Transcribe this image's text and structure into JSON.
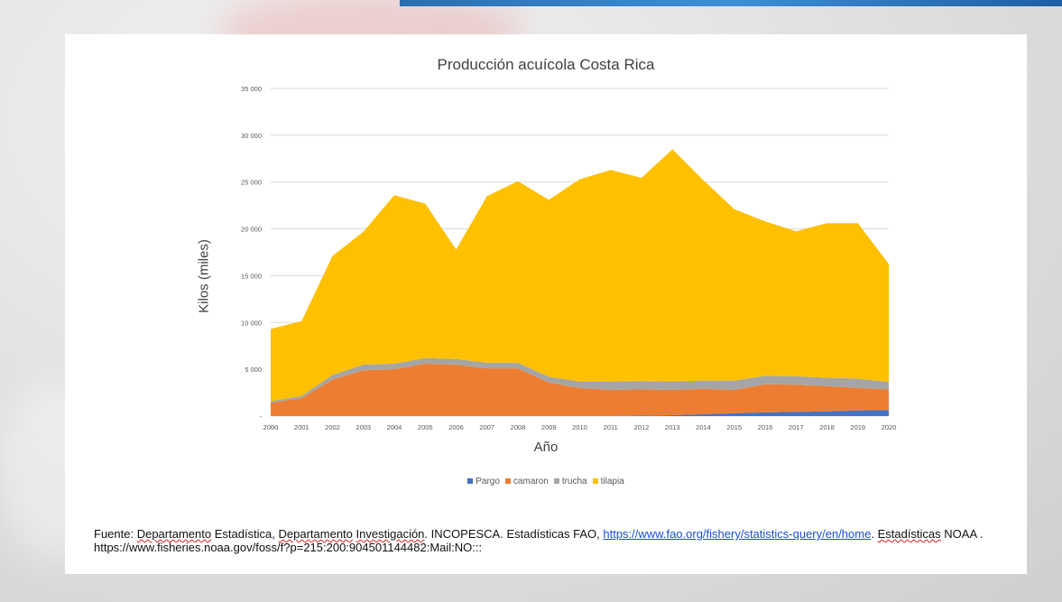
{
  "colors": {
    "Pargo": "#4472c4",
    "camaron": "#ed7d31",
    "trucha": "#a5a5a5",
    "tilapia": "#ffc000"
  },
  "chart_data": {
    "type": "area",
    "stacked": true,
    "title": "Producción acuícola Costa Rica",
    "xlabel": "Año",
    "ylabel": "Kilos (miles)",
    "ylim": [
      0,
      35000
    ],
    "yticks": [
      "-",
      "5 000",
      "10 000",
      "15 000",
      "20 000",
      "25 000",
      "30 000",
      "35 000"
    ],
    "grid": true,
    "legend_position": "bottom",
    "categories": [
      "2000",
      "2001",
      "2002",
      "2003",
      "2004",
      "2005",
      "2006",
      "2007",
      "2008",
      "2009",
      "2010",
      "2011",
      "2012",
      "2013",
      "2014",
      "2015",
      "2016",
      "2017",
      "2018",
      "2019",
      "2020"
    ],
    "series": [
      {
        "name": "Pargo",
        "values": [
          0,
          0,
          0,
          0,
          0,
          0,
          0,
          0,
          0,
          0,
          0,
          0,
          50,
          100,
          200,
          300,
          400,
          450,
          500,
          600,
          650
        ]
      },
      {
        "name": "camaron",
        "values": [
          1400,
          1900,
          3900,
          4900,
          5000,
          5600,
          5500,
          5100,
          5100,
          3600,
          3000,
          2800,
          2800,
          2700,
          2700,
          2500,
          3000,
          2900,
          2700,
          2400,
          2200
        ]
      },
      {
        "name": "trucha",
        "values": [
          200,
          250,
          500,
          600,
          600,
          600,
          600,
          600,
          600,
          600,
          700,
          900,
          900,
          900,
          900,
          1000,
          900,
          900,
          900,
          1000,
          800
        ]
      },
      {
        "name": "tilapia",
        "values": [
          7700,
          8000,
          12700,
          14200,
          18000,
          16500,
          11700,
          17800,
          19400,
          18900,
          21600,
          22600,
          21700,
          24800,
          21400,
          18300,
          16500,
          15500,
          16500,
          16600,
          12600
        ]
      }
    ]
  },
  "source": {
    "prefix": "Fuente: ",
    "w1": "Departamento",
    "mid1": " Estadística, ",
    "w2": "Departamento",
    "mid2": " ",
    "w3": "Investigación",
    "mid3": ". INCOPESCA.  Estadísticas FAO, ",
    "link": "https://www.fao.org/fishery/statistics-query/en/home",
    "mid4": ".  ",
    "w4": "Estadísticas",
    "suffix": " NOAA . https://www.fisheries.noaa.gov/foss/f?p=215:200:904501144482:Mail:NO:::"
  }
}
